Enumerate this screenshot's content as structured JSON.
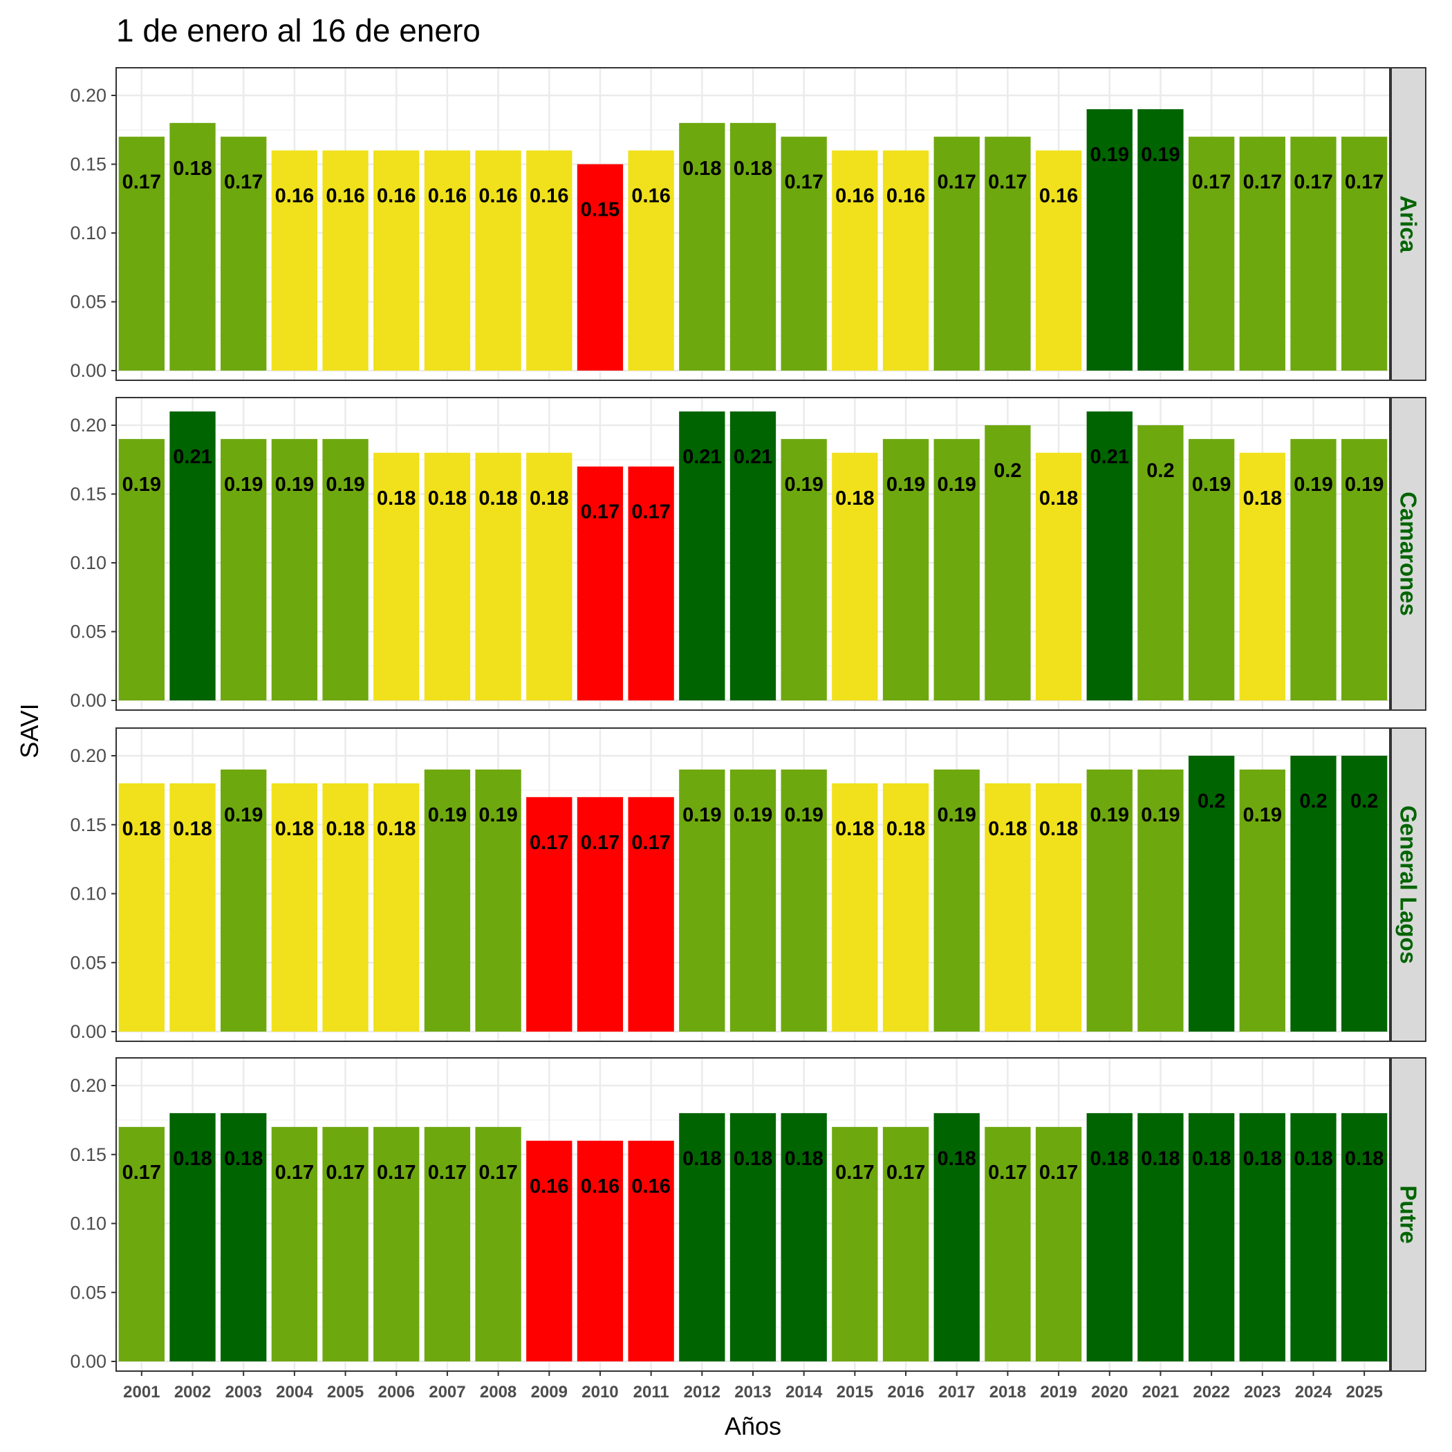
{
  "chart_data": {
    "type": "bar",
    "title": "1 de enero al 16 de enero",
    "xlabel": "Años",
    "ylabel": "SAVI",
    "ylim": [
      0,
      0.22
    ],
    "yticks": [
      "0.00",
      "0.05",
      "0.10",
      "0.15",
      "0.20"
    ],
    "categories": [
      "2001",
      "2002",
      "2003",
      "2004",
      "2005",
      "2006",
      "2007",
      "2008",
      "2009",
      "2010",
      "2011",
      "2012",
      "2013",
      "2014",
      "2015",
      "2016",
      "2017",
      "2018",
      "2019",
      "2020",
      "2021",
      "2022",
      "2023",
      "2024",
      "2025"
    ],
    "facet_strip_position": "right",
    "grid": true,
    "colors": {
      "red": "#ff0000",
      "yellow": "#f0e11c",
      "light_green": "#6ea80f",
      "dark_green": "#006400",
      "strip_bg": "#d9d9d9",
      "strip_text": "#006400"
    },
    "panels": [
      {
        "name": "Arica",
        "values": [
          0.17,
          0.18,
          0.17,
          0.16,
          0.16,
          0.16,
          0.16,
          0.16,
          0.16,
          0.15,
          0.16,
          0.18,
          0.18,
          0.17,
          0.16,
          0.16,
          0.17,
          0.17,
          0.16,
          0.19,
          0.19,
          0.17,
          0.17,
          0.17,
          0.17
        ],
        "labels": [
          "0.17",
          "0.18",
          "0.17",
          "0.16",
          "0.16",
          "0.16",
          "0.16",
          "0.16",
          "0.16",
          "0.15",
          "0.16",
          "0.18",
          "0.18",
          "0.17",
          "0.16",
          "0.16",
          "0.17",
          "0.17",
          "0.16",
          "0.19",
          "0.19",
          "0.17",
          "0.17",
          "0.17",
          "0.17"
        ],
        "bar_colors": [
          "light_green",
          "light_green",
          "light_green",
          "yellow",
          "yellow",
          "yellow",
          "yellow",
          "yellow",
          "yellow",
          "red",
          "yellow",
          "light_green",
          "light_green",
          "light_green",
          "yellow",
          "yellow",
          "light_green",
          "light_green",
          "yellow",
          "dark_green",
          "dark_green",
          "light_green",
          "light_green",
          "light_green",
          "light_green"
        ]
      },
      {
        "name": "Camarones",
        "values": [
          0.19,
          0.21,
          0.19,
          0.19,
          0.19,
          0.18,
          0.18,
          0.18,
          0.18,
          0.17,
          0.17,
          0.21,
          0.21,
          0.19,
          0.18,
          0.19,
          0.19,
          0.2,
          0.18,
          0.21,
          0.2,
          0.19,
          0.18,
          0.19,
          0.19
        ],
        "labels": [
          "0.19",
          "0.21",
          "0.19",
          "0.19",
          "0.19",
          "0.18",
          "0.18",
          "0.18",
          "0.18",
          "0.17",
          "0.17",
          "0.21",
          "0.21",
          "0.19",
          "0.18",
          "0.19",
          "0.19",
          "0.2",
          "0.18",
          "0.21",
          "0.2",
          "0.19",
          "0.18",
          "0.19",
          "0.19"
        ],
        "bar_colors": [
          "light_green",
          "dark_green",
          "light_green",
          "light_green",
          "light_green",
          "yellow",
          "yellow",
          "yellow",
          "yellow",
          "red",
          "red",
          "dark_green",
          "dark_green",
          "light_green",
          "yellow",
          "light_green",
          "light_green",
          "light_green",
          "yellow",
          "dark_green",
          "light_green",
          "light_green",
          "yellow",
          "light_green",
          "light_green"
        ]
      },
      {
        "name": "General Lagos",
        "values": [
          0.18,
          0.18,
          0.19,
          0.18,
          0.18,
          0.18,
          0.19,
          0.19,
          0.17,
          0.17,
          0.17,
          0.19,
          0.19,
          0.19,
          0.18,
          0.18,
          0.19,
          0.18,
          0.18,
          0.19,
          0.19,
          0.2,
          0.19,
          0.2,
          0.2
        ],
        "labels": [
          "0.18",
          "0.18",
          "0.19",
          "0.18",
          "0.18",
          "0.18",
          "0.19",
          "0.19",
          "0.17",
          "0.17",
          "0.17",
          "0.19",
          "0.19",
          "0.19",
          "0.18",
          "0.18",
          "0.19",
          "0.18",
          "0.18",
          "0.19",
          "0.19",
          "0.2",
          "0.19",
          "0.2",
          "0.2"
        ],
        "bar_colors": [
          "yellow",
          "yellow",
          "light_green",
          "yellow",
          "yellow",
          "yellow",
          "light_green",
          "light_green",
          "red",
          "red",
          "red",
          "light_green",
          "light_green",
          "light_green",
          "yellow",
          "yellow",
          "light_green",
          "yellow",
          "yellow",
          "light_green",
          "light_green",
          "dark_green",
          "light_green",
          "dark_green",
          "dark_green"
        ]
      },
      {
        "name": "Putre",
        "values": [
          0.17,
          0.18,
          0.18,
          0.17,
          0.17,
          0.17,
          0.17,
          0.17,
          0.16,
          0.16,
          0.16,
          0.18,
          0.18,
          0.18,
          0.17,
          0.17,
          0.18,
          0.17,
          0.17,
          0.18,
          0.18,
          0.18,
          0.18,
          0.18,
          0.18
        ],
        "labels": [
          "0.17",
          "0.18",
          "0.18",
          "0.17",
          "0.17",
          "0.17",
          "0.17",
          "0.17",
          "0.16",
          "0.16",
          "0.16",
          "0.18",
          "0.18",
          "0.18",
          "0.17",
          "0.17",
          "0.18",
          "0.17",
          "0.17",
          "0.18",
          "0.18",
          "0.18",
          "0.18",
          "0.18",
          "0.18"
        ],
        "bar_colors": [
          "light_green",
          "dark_green",
          "dark_green",
          "light_green",
          "light_green",
          "light_green",
          "light_green",
          "light_green",
          "red",
          "red",
          "red",
          "dark_green",
          "dark_green",
          "dark_green",
          "light_green",
          "light_green",
          "dark_green",
          "light_green",
          "light_green",
          "dark_green",
          "dark_green",
          "dark_green",
          "dark_green",
          "dark_green",
          "dark_green"
        ]
      }
    ]
  }
}
